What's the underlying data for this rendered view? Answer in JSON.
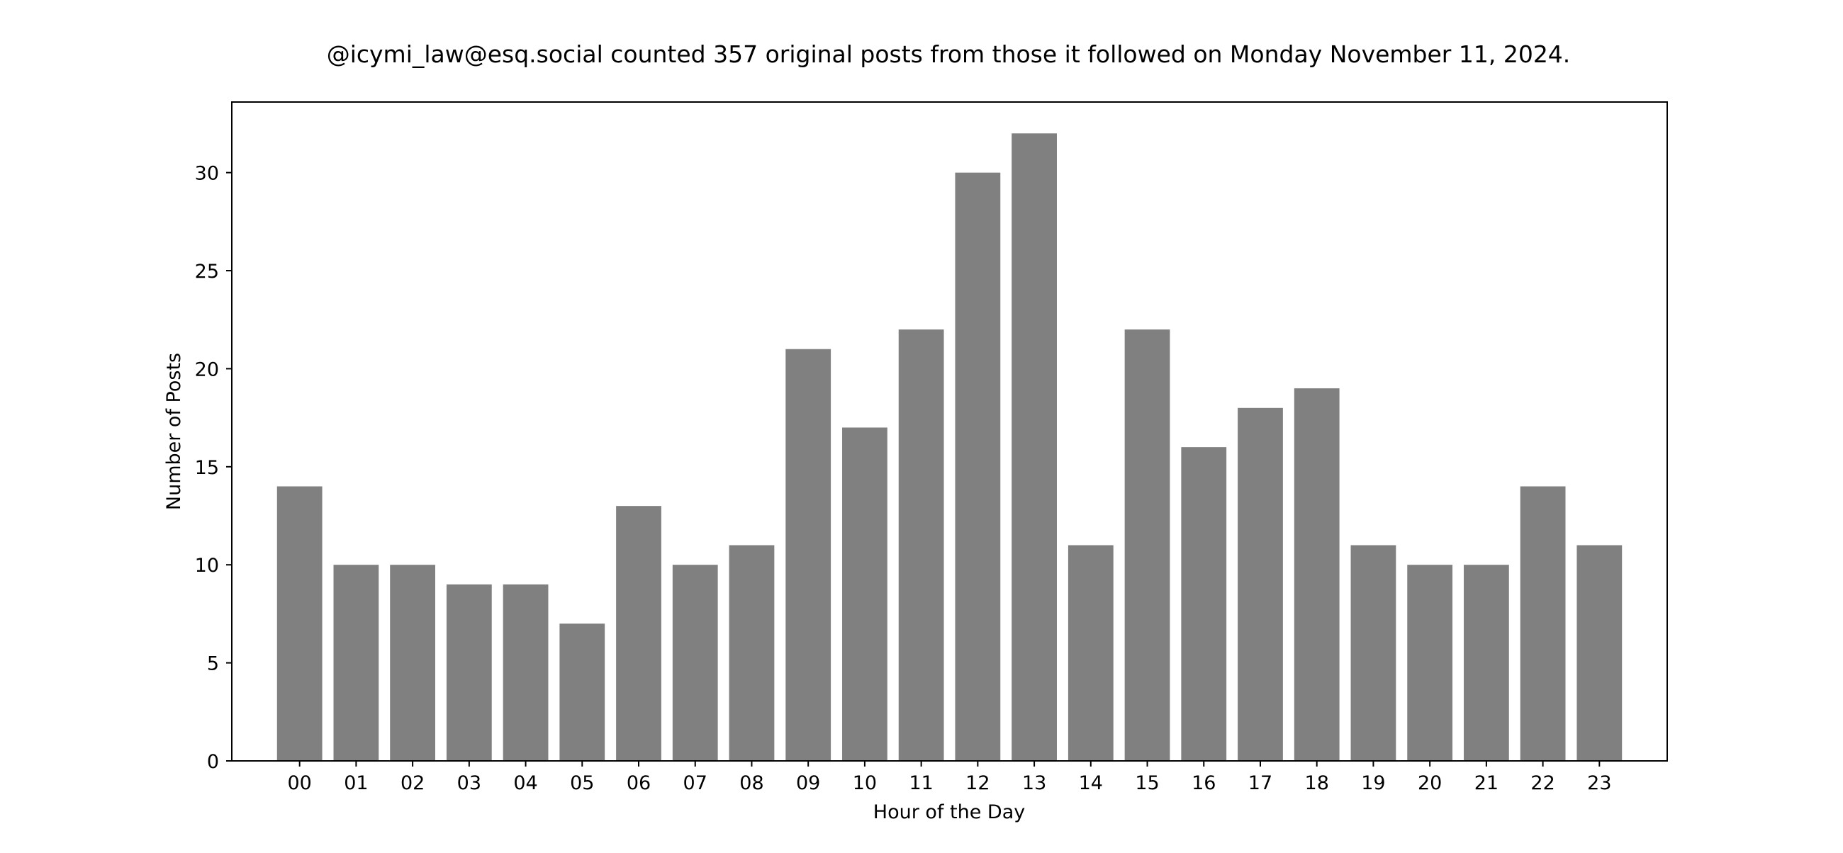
{
  "chart_data": {
    "type": "bar",
    "title": "@icymi_law@esq.social counted 357 original posts from those it followed on Monday November 11, 2024.",
    "xlabel": "Hour of the Day",
    "ylabel": "Number of Posts",
    "categories": [
      "00",
      "01",
      "02",
      "03",
      "04",
      "05",
      "06",
      "07",
      "08",
      "09",
      "10",
      "11",
      "12",
      "13",
      "14",
      "15",
      "16",
      "17",
      "18",
      "19",
      "20",
      "21",
      "22",
      "23"
    ],
    "values": [
      14,
      10,
      10,
      9,
      9,
      7,
      13,
      10,
      11,
      21,
      17,
      22,
      30,
      32,
      11,
      22,
      16,
      18,
      19,
      11,
      10,
      10,
      14,
      11
    ],
    "ylim": [
      0,
      33.6
    ],
    "yticks": [
      0,
      5,
      10,
      15,
      20,
      25,
      30
    ],
    "bar_color": "#808080",
    "grid": false,
    "legend": "none"
  }
}
